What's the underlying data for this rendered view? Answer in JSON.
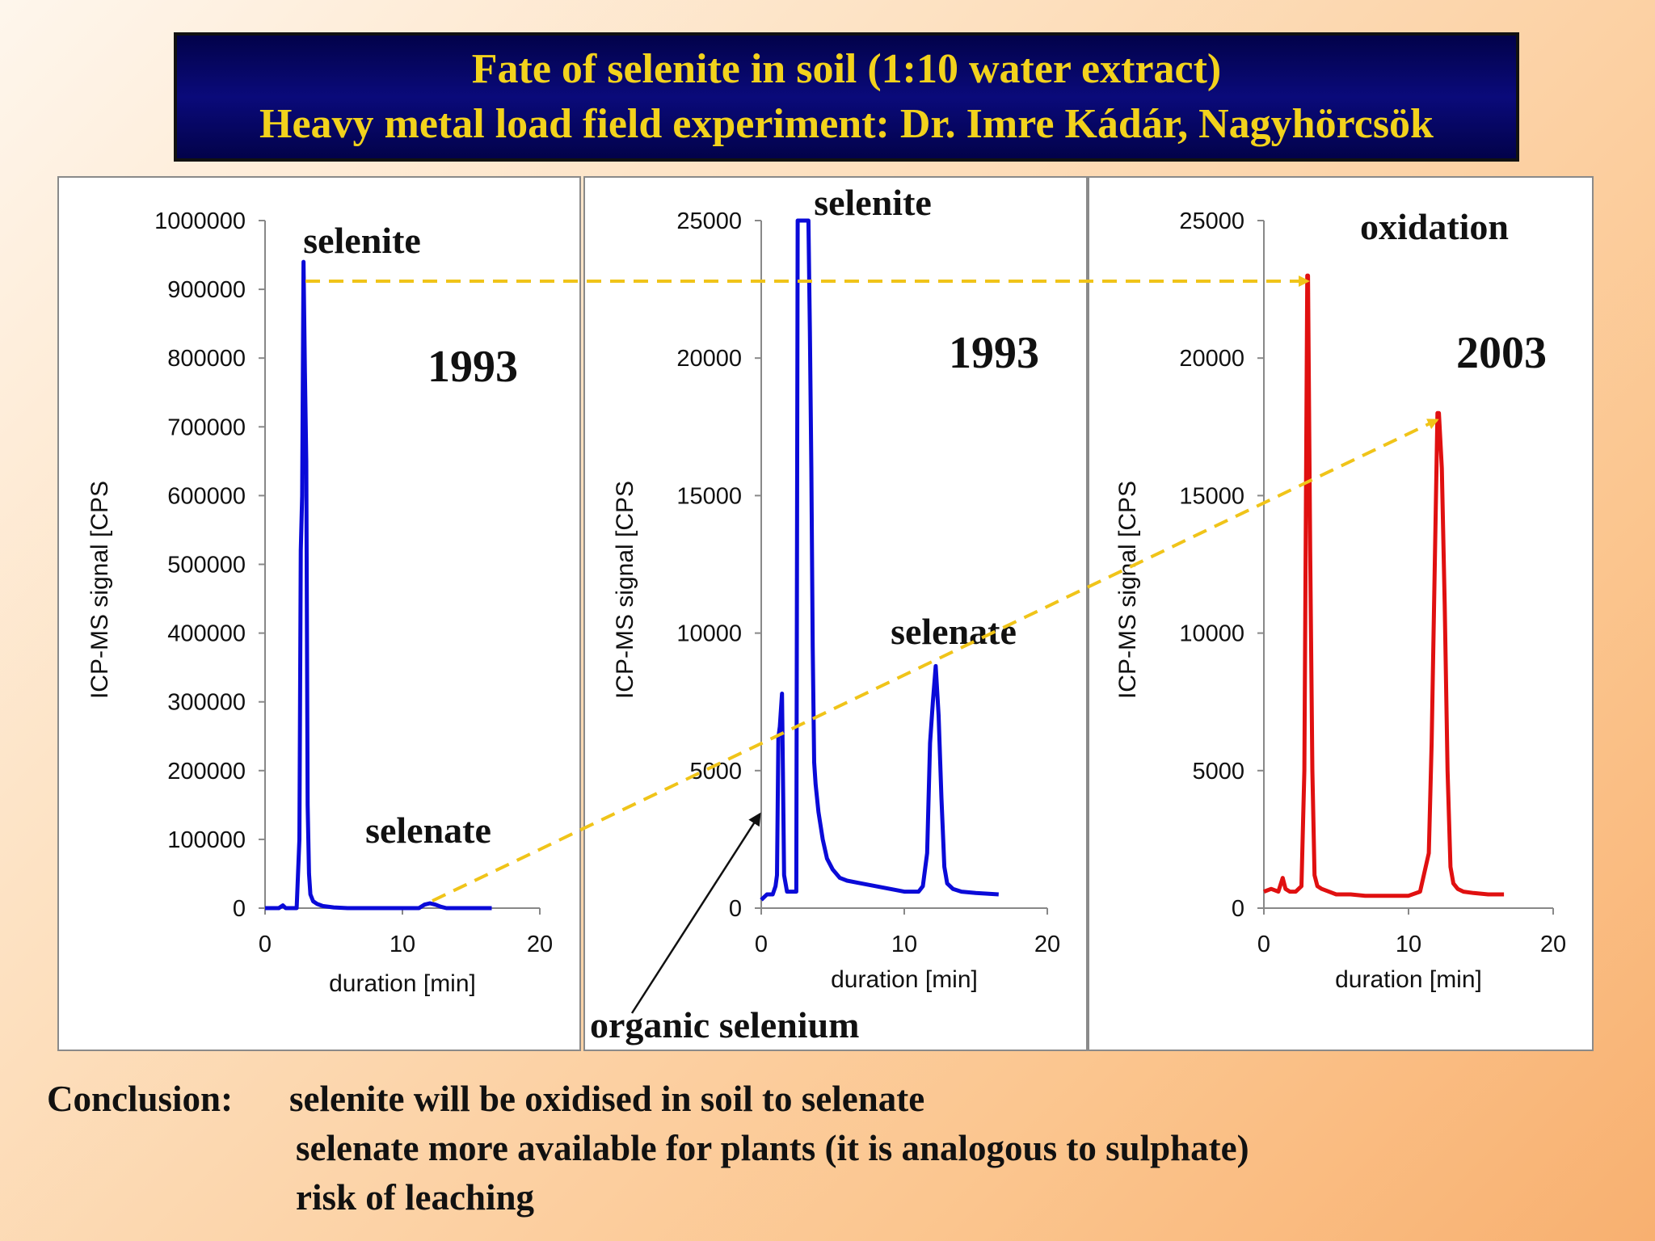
{
  "title": {
    "line1": "Fate of selenite in soil (1:10 water extract)",
    "line2": "Heavy metal load field experiment: Dr. Imre Kádár, Nagyhörcsök"
  },
  "conclusion": {
    "label": "Conclusion:",
    "lines": [
      "selenite will be oxidised in soil to selenate",
      "selenate more available for plants (it is analogous to  sulphate)",
      "risk of leaching"
    ]
  },
  "organic_label": "organic selenium",
  "colors": {
    "series_1993": "#0a0ad8",
    "series_2003": "#e01010",
    "arrow": "#f0c419",
    "title_text": "#f2d21c"
  },
  "chart_data": [
    {
      "type": "line",
      "year_label": "1993",
      "xlabel": "duration [min]",
      "ylabel": "ICP-MS signal [CPS",
      "xlim": [
        0,
        20
      ],
      "ylim": [
        0,
        1000000
      ],
      "xticks": [
        0,
        10,
        20
      ],
      "yticks": [
        0,
        100000,
        200000,
        300000,
        400000,
        500000,
        600000,
        700000,
        800000,
        900000,
        1000000
      ],
      "annotations": [
        "selenite",
        "selenate"
      ],
      "series": [
        {
          "color": "#0a0ad8",
          "x": [
            0,
            1,
            1.3,
            1.5,
            2.3,
            2.4,
            2.5,
            2.6,
            2.7,
            2.8,
            2.9,
            3.0,
            3.1,
            3.2,
            3.3,
            3.5,
            3.8,
            4.2,
            5,
            6,
            8,
            10,
            11.2,
            11.6,
            12.0,
            12.4,
            12.8,
            13.2,
            14,
            16.5
          ],
          "y": [
            0,
            0,
            4000,
            0,
            0,
            50000,
            100000,
            520000,
            600000,
            940000,
            780000,
            650000,
            150000,
            50000,
            20000,
            10000,
            6000,
            3000,
            1000,
            0,
            0,
            0,
            0,
            5000,
            7000,
            5000,
            2000,
            0,
            0,
            0
          ]
        }
      ]
    },
    {
      "type": "line",
      "year_label": "1993",
      "xlabel": "duration [min]",
      "ylabel": "ICP-MS signal [CPS",
      "xlim": [
        0,
        20
      ],
      "ylim": [
        0,
        25000
      ],
      "xticks": [
        0,
        10,
        20
      ],
      "yticks": [
        0,
        5000,
        10000,
        15000,
        20000,
        25000
      ],
      "annotations": [
        "selenite",
        "selenate"
      ],
      "series": [
        {
          "color": "#0a0ad8",
          "x": [
            0,
            0.4,
            0.8,
            1.0,
            1.1,
            1.2,
            1.3,
            1.45,
            1.6,
            1.8,
            2.2,
            2.45,
            2.55,
            2.7,
            3.0,
            3.3,
            3.4,
            3.5,
            3.6,
            3.7,
            3.8,
            4.0,
            4.3,
            4.6,
            5.0,
            5.5,
            6,
            7,
            8,
            9,
            10,
            11,
            11.3,
            11.6,
            11.8,
            12.0,
            12.2,
            12.4,
            12.6,
            12.8,
            13.0,
            13.4,
            14,
            15,
            16.6
          ],
          "y": [
            300,
            500,
            500,
            800,
            1200,
            6200,
            6600,
            7800,
            1200,
            600,
            600,
            600,
            25000,
            25000,
            25000,
            25000,
            21000,
            16000,
            9500,
            5300,
            4500,
            3500,
            2500,
            1800,
            1400,
            1100,
            1000,
            900,
            800,
            700,
            600,
            600,
            800,
            2000,
            6000,
            7500,
            8800,
            7000,
            4000,
            1500,
            900,
            700,
            600,
            550,
            500
          ]
        }
      ]
    },
    {
      "type": "line",
      "year_label": "2003",
      "xlabel": "duration [min]",
      "ylabel": "ICP-MS signal [CPS",
      "xlim": [
        0,
        20
      ],
      "ylim": [
        0,
        25000
      ],
      "xticks": [
        0,
        10,
        20
      ],
      "yticks": [
        0,
        5000,
        10000,
        15000,
        20000,
        25000
      ],
      "annotations": [
        "oxidation"
      ],
      "series": [
        {
          "color": "#e01010",
          "x": [
            0,
            0.5,
            1.0,
            1.3,
            1.5,
            1.8,
            2.2,
            2.6,
            2.8,
            3.0,
            3.05,
            3.2,
            3.35,
            3.5,
            3.7,
            4.0,
            4.5,
            5,
            6,
            7,
            8,
            9,
            10,
            10.8,
            11.4,
            11.6,
            11.8,
            12.0,
            12.1,
            12.3,
            12.5,
            12.7,
            12.9,
            13.1,
            13.4,
            13.8,
            14.5,
            15.5,
            16.6
          ],
          "y": [
            600,
            700,
            600,
            1100,
            700,
            600,
            600,
            800,
            5000,
            23000,
            23000,
            13000,
            5000,
            1200,
            800,
            700,
            600,
            500,
            500,
            450,
            450,
            450,
            450,
            600,
            2000,
            6000,
            12000,
            18000,
            18000,
            16000,
            11000,
            5000,
            1500,
            900,
            700,
            600,
            550,
            500,
            500
          ]
        }
      ]
    }
  ]
}
